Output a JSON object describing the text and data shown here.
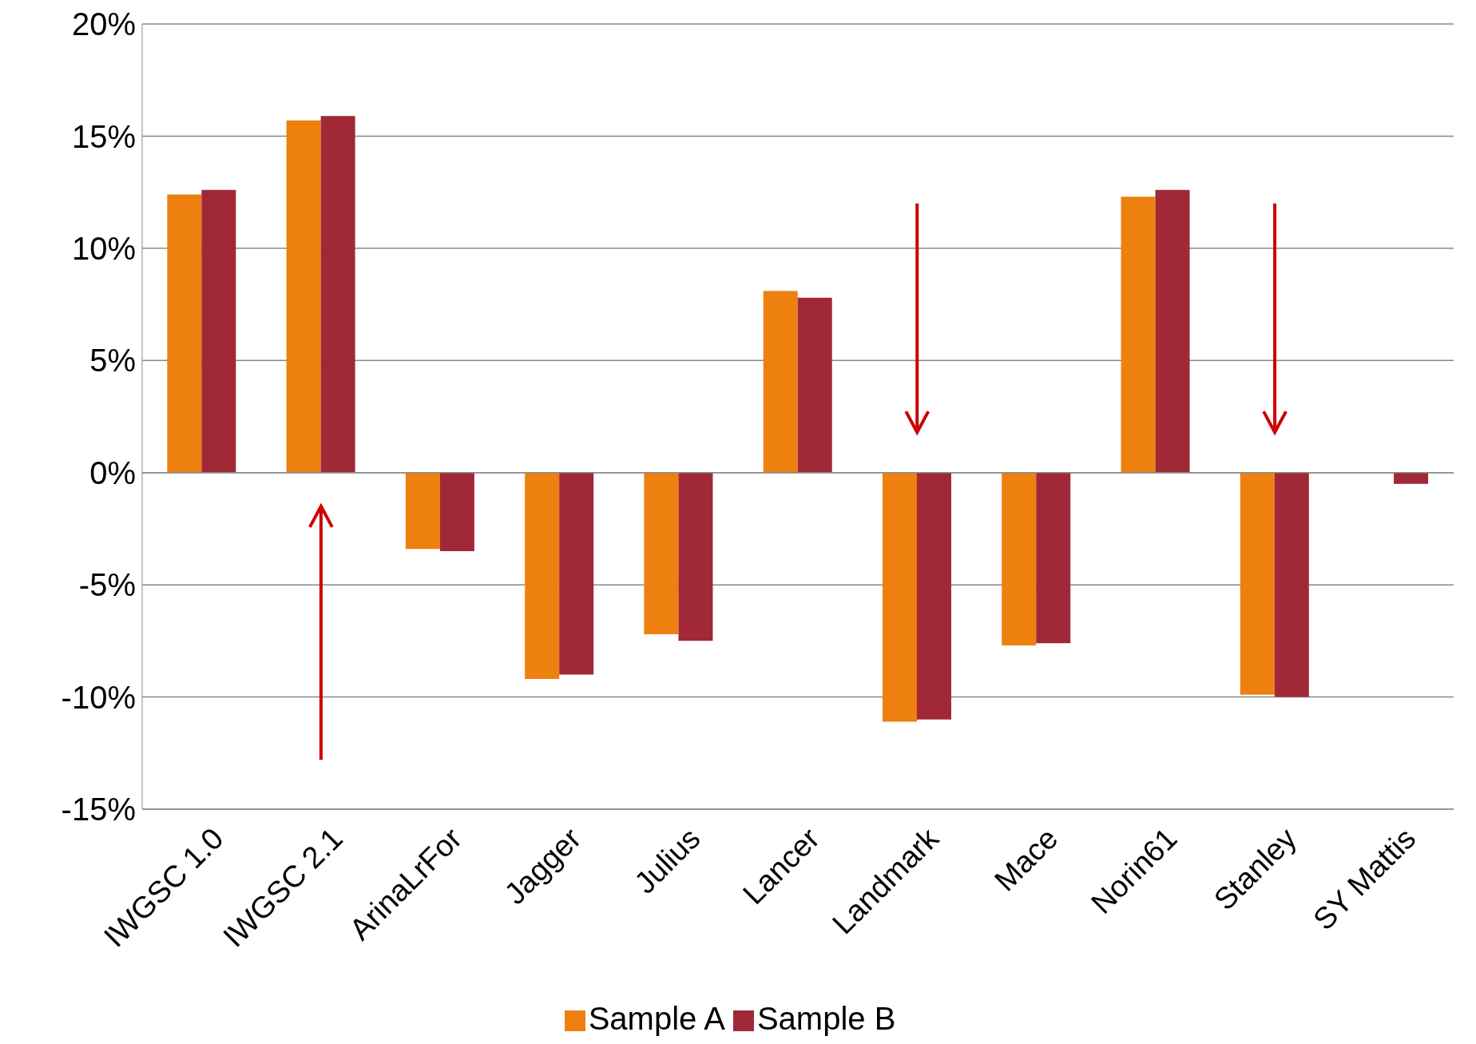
{
  "chart_data": {
    "type": "bar",
    "categories": [
      "IWGSC 1.0",
      "IWGSC 2.1",
      "ArinaLrFor",
      "Jagger",
      "Julius",
      "Lancer",
      "Landmark",
      "Mace",
      "Norin61",
      "Stanley",
      "SY Mattis"
    ],
    "series": [
      {
        "name": "Sample A",
        "color": "#ee800f",
        "values": [
          12.4,
          15.7,
          -3.4,
          -9.2,
          -7.2,
          8.1,
          -11.1,
          -7.7,
          12.3,
          -9.9,
          null
        ]
      },
      {
        "name": "Sample B",
        "color": "#a02837",
        "values": [
          12.6,
          15.9,
          -3.5,
          -9.0,
          -7.5,
          7.8,
          -11.0,
          -7.6,
          12.6,
          -10.0,
          -0.5
        ]
      }
    ],
    "ylim": [
      -15,
      20
    ],
    "yticks": [
      {
        "value": -15,
        "label": "-15%"
      },
      {
        "value": -10,
        "label": "-10%"
      },
      {
        "value": -5,
        "label": "-5%"
      },
      {
        "value": 0,
        "label": "0%"
      },
      {
        "value": 5,
        "label": "5%"
      },
      {
        "value": 10,
        "label": "10%"
      },
      {
        "value": 15,
        "label": "15%"
      },
      {
        "value": 20,
        "label": "20%"
      }
    ],
    "grid": "y",
    "legend": "bottom"
  }
}
